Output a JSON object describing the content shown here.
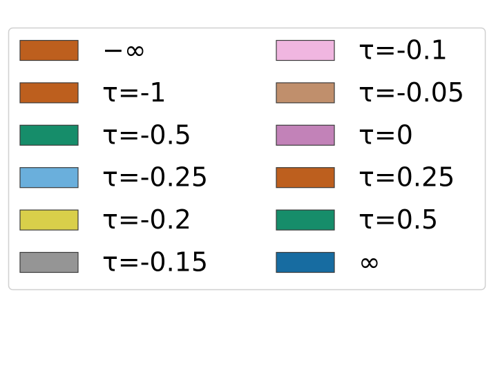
{
  "legend": {
    "columns": 2,
    "entries": [
      {
        "label": "−∞",
        "color": "#bd5f1e"
      },
      {
        "label": "τ=-1",
        "color": "#bd5f1e"
      },
      {
        "label": "τ=-0.5",
        "color": "#168d6a"
      },
      {
        "label": "τ=-0.25",
        "color": "#6aafdc"
      },
      {
        "label": "τ=-0.2",
        "color": "#d9cf4a"
      },
      {
        "label": "τ=-0.15",
        "color": "#959595"
      },
      {
        "label": "τ=-0.1",
        "color": "#f0b6e0"
      },
      {
        "label": "τ=-0.05",
        "color": "#c08f6c"
      },
      {
        "label": "τ=0",
        "color": "#c282b8"
      },
      {
        "label": "τ=0.25",
        "color": "#bd5f1e"
      },
      {
        "label": "τ=0.5",
        "color": "#168d6a"
      },
      {
        "label": "∞",
        "color": "#176ca1"
      }
    ]
  }
}
